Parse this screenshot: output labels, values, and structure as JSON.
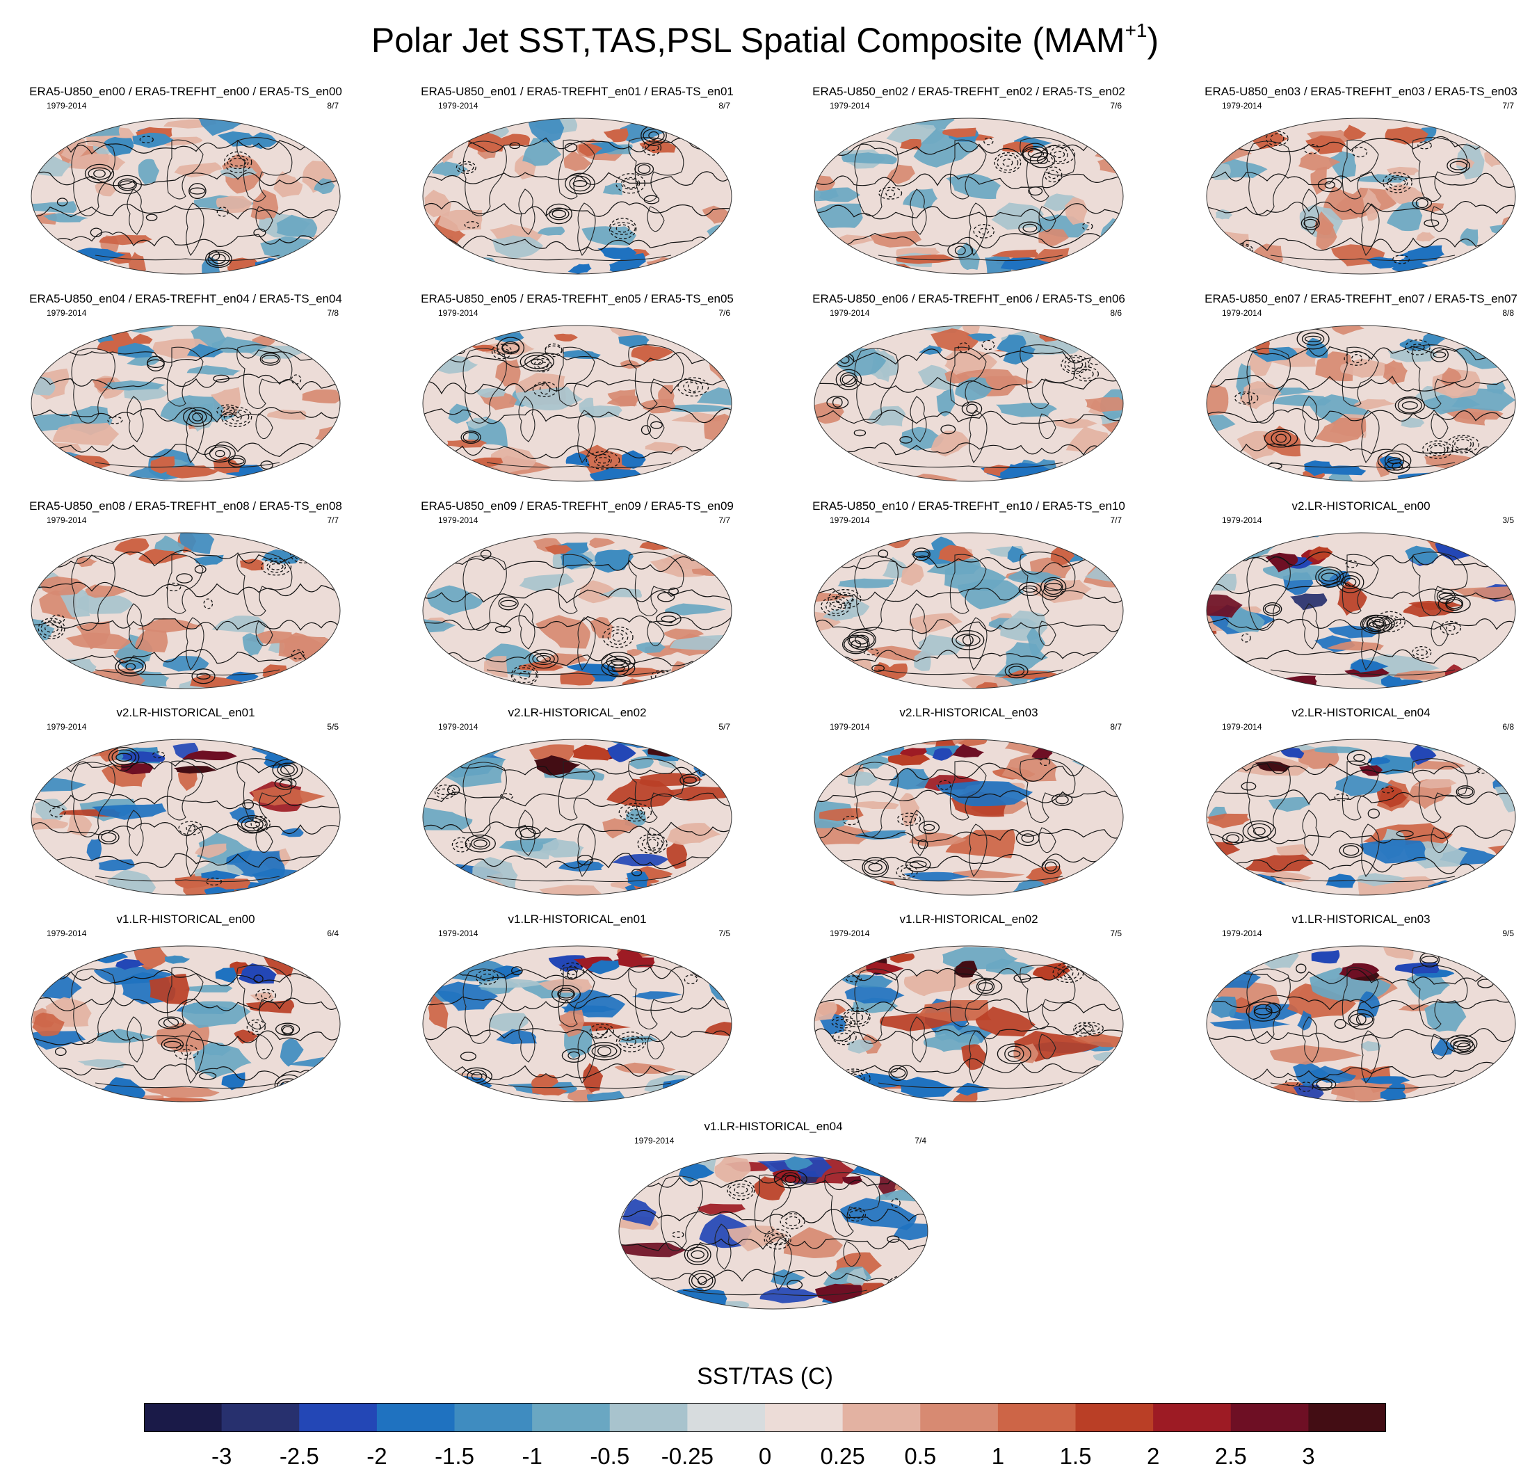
{
  "title": {
    "main": "Polar Jet SST,TAS,PSL Spatial Composite (MAM",
    "sup": "+1",
    "tail": ")"
  },
  "panels": [
    {
      "title": "ERA5-U850_en00 / ERA5-TREFHT_en00 / ERA5-TS_en00",
      "left": "1979-2014",
      "right": "8/7",
      "style": "era5"
    },
    {
      "title": "ERA5-U850_en01 / ERA5-TREFHT_en01 / ERA5-TS_en01",
      "left": "1979-2014",
      "right": "8/7",
      "style": "era5"
    },
    {
      "title": "ERA5-U850_en02 / ERA5-TREFHT_en02 / ERA5-TS_en02",
      "left": "1979-2014",
      "right": "7/6",
      "style": "era5"
    },
    {
      "title": "ERA5-U850_en03 / ERA5-TREFHT_en03 / ERA5-TS_en03",
      "left": "1979-2014",
      "right": "7/7",
      "style": "era5"
    },
    {
      "title": "ERA5-U850_en04 / ERA5-TREFHT_en04 / ERA5-TS_en04",
      "left": "1979-2014",
      "right": "7/8",
      "style": "era5"
    },
    {
      "title": "ERA5-U850_en05 / ERA5-TREFHT_en05 / ERA5-TS_en05",
      "left": "1979-2014",
      "right": "7/6",
      "style": "era5"
    },
    {
      "title": "ERA5-U850_en06 / ERA5-TREFHT_en06 / ERA5-TS_en06",
      "left": "1979-2014",
      "right": "8/6",
      "style": "era5"
    },
    {
      "title": "ERA5-U850_en07 / ERA5-TREFHT_en07 / ERA5-TS_en07",
      "left": "1979-2014",
      "right": "8/8",
      "style": "era5"
    },
    {
      "title": "ERA5-U850_en08 / ERA5-TREFHT_en08 / ERA5-TS_en08",
      "left": "1979-2014",
      "right": "7/7",
      "style": "era5"
    },
    {
      "title": "ERA5-U850_en09 / ERA5-TREFHT_en09 / ERA5-TS_en09",
      "left": "1979-2014",
      "right": "7/7",
      "style": "era5"
    },
    {
      "title": "ERA5-U850_en10 / ERA5-TREFHT_en10 / ERA5-TS_en10",
      "left": "1979-2014",
      "right": "7/7",
      "style": "era5"
    },
    {
      "title": "v2.LR-HISTORICAL_en00",
      "left": "1979-2014",
      "right": "3/5",
      "style": "model-strong"
    },
    {
      "title": "v2.LR-HISTORICAL_en01",
      "left": "1979-2014",
      "right": "5/5",
      "style": "model"
    },
    {
      "title": "v2.LR-HISTORICAL_en02",
      "left": "1979-2014",
      "right": "5/7",
      "style": "model"
    },
    {
      "title": "v2.LR-HISTORICAL_en03",
      "left": "1979-2014",
      "right": "8/7",
      "style": "model"
    },
    {
      "title": "v2.LR-HISTORICAL_en04",
      "left": "1979-2014",
      "right": "6/8",
      "style": "model"
    },
    {
      "title": "v1.LR-HISTORICAL_en00",
      "left": "1979-2014",
      "right": "6/4",
      "style": "model"
    },
    {
      "title": "v1.LR-HISTORICAL_en01",
      "left": "1979-2014",
      "right": "7/5",
      "style": "model"
    },
    {
      "title": "v1.LR-HISTORICAL_en02",
      "left": "1979-2014",
      "right": "7/5",
      "style": "model"
    },
    {
      "title": "v1.LR-HISTORICAL_en03",
      "left": "1979-2014",
      "right": "9/5",
      "style": "model"
    },
    {
      "title": "v1.LR-HISTORICAL_en04",
      "left": "1979-2014",
      "right": "7/4",
      "style": "model-strong"
    }
  ],
  "colorbar": {
    "title": "SST/TAS (C)",
    "labels": [
      "-3",
      "-2.5",
      "-2",
      "-1.5",
      "-1",
      "-0.5",
      "-0.25",
      "0",
      "0.25",
      "0.5",
      "1",
      "1.5",
      "2",
      "2.5",
      "3"
    ],
    "colors": [
      "#1a1a48",
      "#27306e",
      "#2347b6",
      "#1f72c0",
      "#3f8cc0",
      "#6aa7c2",
      "#a8c3cd",
      "#d7dcde",
      "#ecdcd7",
      "#e3b2a2",
      "#d78a72",
      "#cd6547",
      "#ba3f26",
      "#9d1b24",
      "#6e0f24",
      "#430d14"
    ]
  }
}
